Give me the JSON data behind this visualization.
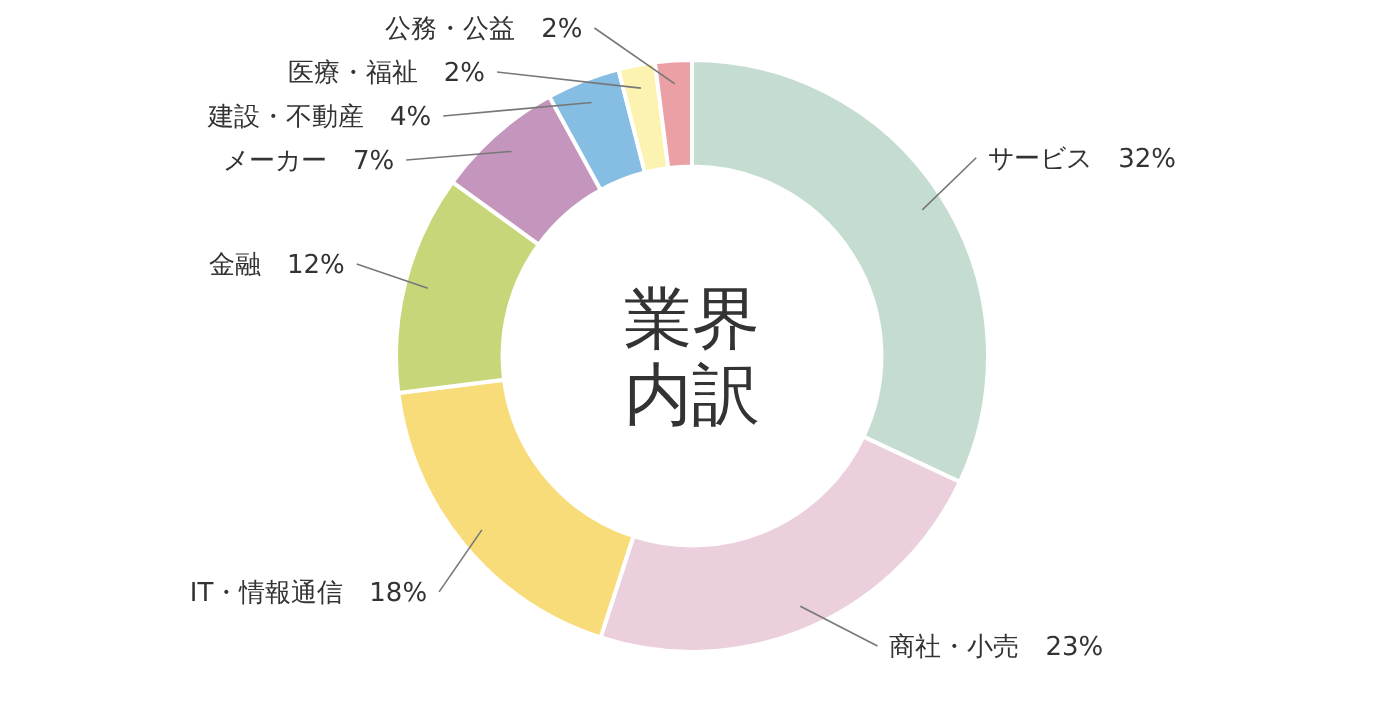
{
  "chart_data": {
    "type": "donut",
    "title": "業界内訳",
    "categories": [
      "サービス",
      "商社・小売",
      "IT・情報通信",
      "金融",
      "メーカー",
      "建設・不動産",
      "医療・福祉",
      "公務・公益"
    ],
    "values": [
      32,
      23,
      18,
      12,
      7,
      4,
      2,
      2
    ],
    "value_labels": [
      "32%",
      "23%",
      "18%",
      "12%",
      "7%",
      "4%",
      "2%",
      "2%"
    ],
    "colors": [
      "#c5ddd0",
      "#ebcfdc",
      "#f9dc7a",
      "#c8d67a",
      "#c496bd",
      "#85bde3",
      "#fdf3b0",
      "#eba0a6"
    ],
    "legend": false
  }
}
